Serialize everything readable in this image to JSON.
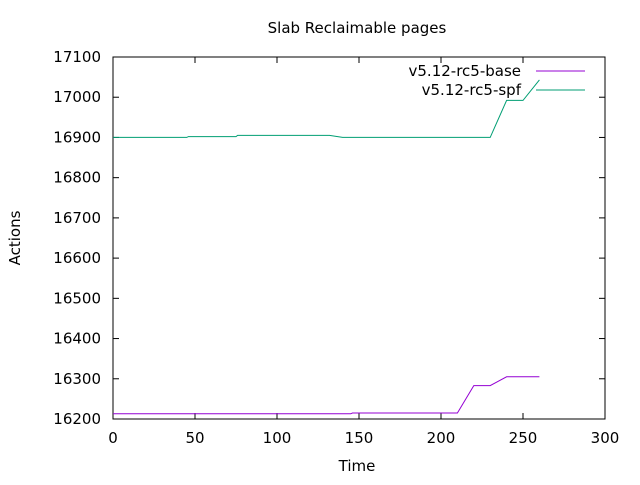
{
  "chart_data": {
    "type": "line",
    "title": "Slab Reclaimable pages",
    "xlabel": "Time",
    "ylabel": "Actions",
    "xlim": [
      0,
      300
    ],
    "ylim": [
      16200,
      17100
    ],
    "xticks": [
      "0",
      "50",
      "100",
      "150",
      "200",
      "250",
      "300"
    ],
    "yticks": [
      "16200",
      "16300",
      "16400",
      "16500",
      "16600",
      "16700",
      "16800",
      "16900",
      "17000",
      "17100"
    ],
    "grid": false,
    "legend": "top-right",
    "series": [
      {
        "name": "v5.12-rc5-base",
        "color": "#9400d3",
        "points": [
          [
            0,
            16213
          ],
          [
            145,
            16213
          ],
          [
            146,
            16215
          ],
          [
            210,
            16215
          ],
          [
            220,
            16283
          ],
          [
            230,
            16283
          ],
          [
            240,
            16305
          ],
          [
            260,
            16305
          ]
        ]
      },
      {
        "name": "v5.12-rc5-spf",
        "color": "#009e73",
        "points": [
          [
            0,
            16900
          ],
          [
            45,
            16900
          ],
          [
            46,
            16902
          ],
          [
            75,
            16902
          ],
          [
            76,
            16905
          ],
          [
            132,
            16905
          ],
          [
            140,
            16900
          ],
          [
            230,
            16900
          ],
          [
            240,
            16992
          ],
          [
            250,
            16992
          ],
          [
            260,
            17043
          ]
        ]
      }
    ]
  }
}
